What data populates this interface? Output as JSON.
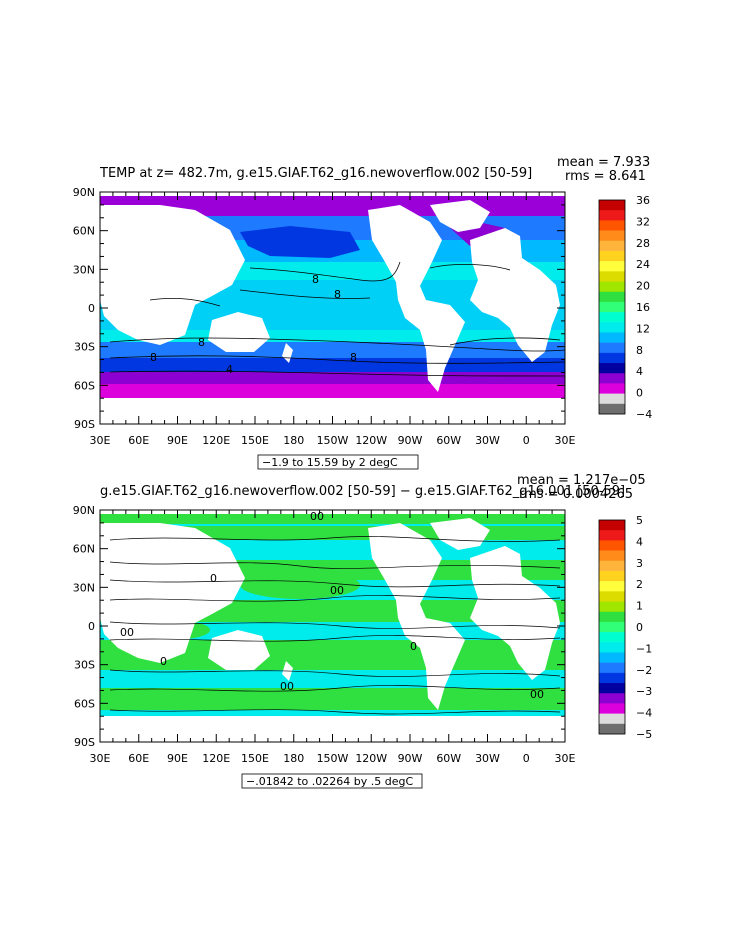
{
  "panels": [
    {
      "title": "TEMP at z= 482.7m, g.e15.GIAF.T62_g16.newoverflow.002 [50-59]",
      "mean": "mean = 7.933",
      "rms": "rms = 8.641",
      "range": "−1.9 to 15.59 by 2 degC",
      "lat_labels": [
        "90N",
        "60N",
        "30N",
        "0",
        "30S",
        "60S",
        "90S"
      ],
      "lon_labels": [
        "30E",
        "60E",
        "90E",
        "120E",
        "150E",
        "180",
        "150W",
        "120W",
        "90W",
        "60W",
        "30W",
        "0",
        "30E"
      ],
      "contour_labels": [
        "8",
        "8",
        "8",
        "8",
        "8",
        "4"
      ],
      "colorbar": {
        "labels": [
          "36",
          "32",
          "28",
          "24",
          "20",
          "16",
          "12",
          "8",
          "4",
          "0",
          "−4"
        ],
        "colors": [
          "#c40000",
          "#ee1a1a",
          "#ff5500",
          "#ff8c1a",
          "#ffb43c",
          "#ffd21e",
          "#ffff3c",
          "#dcdc00",
          "#a0e600",
          "#30e040",
          "#32ff78",
          "#00ffd0",
          "#00ecec",
          "#00b9ff",
          "#1e7aff",
          "#0037e1",
          "#0000a0",
          "#8c00d2",
          "#dc00dc",
          "#dcdcdc",
          "#6e6e6e"
        ]
      }
    },
    {
      "title": "g.e15.GIAF.T62_g16.newoverflow.002 [50-59] − g.e15.GIAF.T62_g16.001 [50-59]",
      "mean": "mean = 1.217e−05",
      "rms": "rms = 0.0004265",
      "range": "−.01842 to .02264 by .5 degC",
      "lat_labels": [
        "90N",
        "60N",
        "30N",
        "0",
        "30S",
        "60S",
        "90S"
      ],
      "lon_labels": [
        "30E",
        "60E",
        "90E",
        "120E",
        "150E",
        "180",
        "150W",
        "120W",
        "90W",
        "60W",
        "30W",
        "0",
        "30E"
      ],
      "contour_labels": [
        "00",
        "00",
        "0",
        "00",
        "0",
        "00",
        "0",
        "00"
      ],
      "colorbar": {
        "labels": [
          "5",
          "4",
          "3",
          "2",
          "1",
          "0",
          "−1",
          "−2",
          "−3",
          "−4",
          "−5"
        ],
        "colors": [
          "#c40000",
          "#ee1a1a",
          "#ff5500",
          "#ff8c1a",
          "#ffb43c",
          "#ffd21e",
          "#ffff3c",
          "#dcdc00",
          "#a0e600",
          "#30e040",
          "#32ff78",
          "#00ffd0",
          "#00ecec",
          "#00b9ff",
          "#1e7aff",
          "#0037e1",
          "#0000a0",
          "#8c00d2",
          "#dc00dc",
          "#dcdcdc",
          "#6e6e6e"
        ]
      }
    }
  ]
}
